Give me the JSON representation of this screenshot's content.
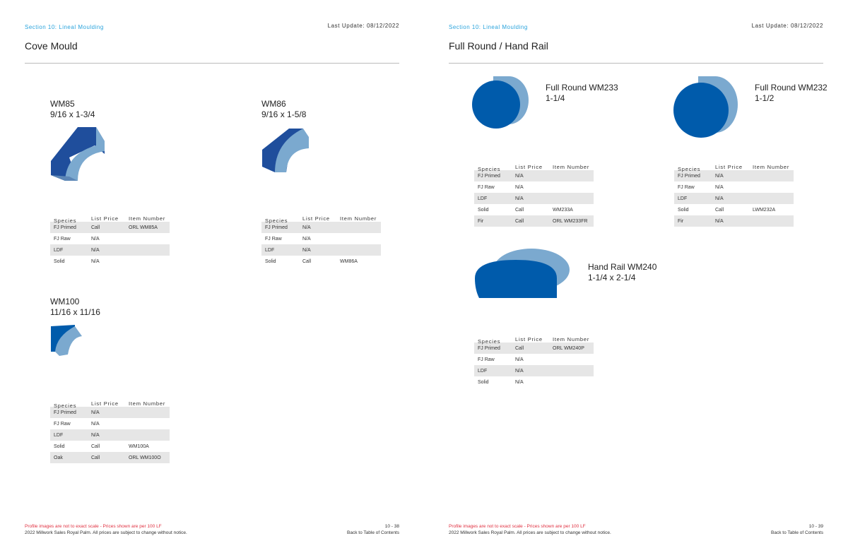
{
  "pages": [
    {
      "section": "Section 10: Lineal Moulding",
      "last_update": "Last Update: 08/12/2022",
      "title": "Cove Mould",
      "page_number": "10 - 38",
      "products": [
        {
          "name": "WM85",
          "size": "9/16 x 1-3/4",
          "shape": "cove-large",
          "rows": [
            [
              "FJ Primed",
              "Call",
              "ORL WM85A"
            ],
            [
              "FJ Raw",
              "N/A",
              ""
            ],
            [
              "LDF",
              "N/A",
              ""
            ],
            [
              "Solid",
              "N/A",
              ""
            ]
          ]
        },
        {
          "name": "WM86",
          "size": "9/16 x 1-5/8",
          "shape": "cove-medium",
          "rows": [
            [
              "FJ Primed",
              "N/A",
              ""
            ],
            [
              "FJ Raw",
              "N/A",
              ""
            ],
            [
              "LDF",
              "N/A",
              ""
            ],
            [
              "Solid",
              "Call",
              "WM86A"
            ]
          ]
        },
        {
          "name": "WM100",
          "size": "11/16 x 11/16",
          "shape": "cove-small",
          "rows": [
            [
              "FJ Primed",
              "N/A",
              ""
            ],
            [
              "FJ Raw",
              "N/A",
              ""
            ],
            [
              "LDF",
              "N/A",
              ""
            ],
            [
              "Solid",
              "Call",
              "WM100A"
            ],
            [
              "Oak",
              "Call",
              "ORL WM100O"
            ]
          ]
        }
      ]
    },
    {
      "section": "Section 10: Lineal Moulding",
      "last_update": "Last Update: 08/12/2022",
      "title": "Full Round / Hand Rail",
      "page_number": "10 - 39",
      "products": [
        {
          "name": "Full Round WM233",
          "size": "1-1/4",
          "shape": "round-small",
          "rows": [
            [
              "FJ Primed",
              "N/A",
              ""
            ],
            [
              "FJ Raw",
              "N/A",
              ""
            ],
            [
              "LDF",
              "N/A",
              ""
            ],
            [
              "Solid",
              "Call",
              "WM233A"
            ],
            [
              "Fir",
              "Call",
              "ORL WM233FR"
            ]
          ]
        },
        {
          "name": "Full Round WM232",
          "size": "1-1/2",
          "shape": "round-large",
          "rows": [
            [
              "FJ Primed",
              "N/A",
              ""
            ],
            [
              "FJ Raw",
              "N/A",
              ""
            ],
            [
              "LDF",
              "N/A",
              ""
            ],
            [
              "Solid",
              "Call",
              "LWM232A"
            ],
            [
              "Fir",
              "N/A",
              ""
            ]
          ]
        },
        {
          "name": "Hand Rail WM240",
          "size": "1-1/4 x 2-1/4",
          "shape": "handrail",
          "rows": [
            [
              "FJ Primed",
              "Call",
              "ORL WM240P"
            ],
            [
              "FJ Raw",
              "N/A",
              ""
            ],
            [
              "LDF",
              "N/A",
              ""
            ],
            [
              "Solid",
              "N/A",
              ""
            ]
          ]
        }
      ]
    }
  ],
  "table_headers": [
    "Species",
    "List Price",
    "Item Number"
  ],
  "footer": {
    "disclaimer": "Profile images are not to exact scale   -   Prices shown are per 100 LF",
    "copyright": "2022 Millwork Sales Royal Palm. All prices are subject to change without notice.",
    "toc_link": "Back to Table of Contents"
  },
  "colors": {
    "accent": "#29a3dc",
    "dark_blue": "#1f4e9c",
    "light_blue": "#7ba9cf",
    "round_blue": "#005bab",
    "warning": "#e03040"
  }
}
